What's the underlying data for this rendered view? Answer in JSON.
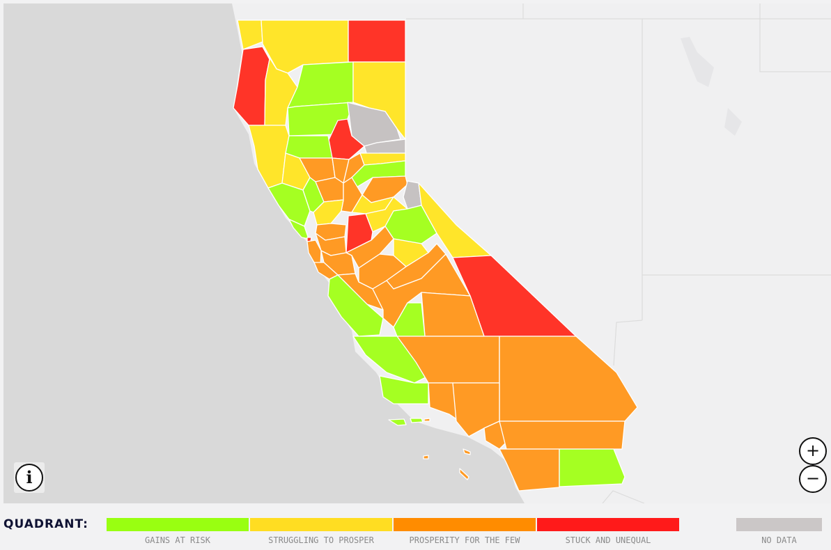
{
  "legend": {
    "title": "QUADRANT:",
    "items": [
      {
        "label": "GAINS AT RISK",
        "color": "#99ff11"
      },
      {
        "label": "STRUGGLING TO PROSPER",
        "color": "#ffdd22"
      },
      {
        "label": "PROSPERITY FOR THE FEW",
        "color": "#ff8c00"
      },
      {
        "label": "STUCK AND UNEQUAL",
        "color": "#ff1a1a"
      },
      {
        "label": "NO DATA",
        "color": "#cbc7c7"
      }
    ]
  },
  "controls": {
    "info_icon": "i",
    "zoom_in": "+",
    "zoom_out": "−"
  },
  "colors": {
    "ocean": "#d9d9d9",
    "land": "#f0f0f1",
    "gains_at_risk": "#a5ff22",
    "struggling": "#ffe52a",
    "prosperity_few": "#ff9a24",
    "stuck_unequal": "#ff3428",
    "no_data": "#c6c2c2"
  }
}
